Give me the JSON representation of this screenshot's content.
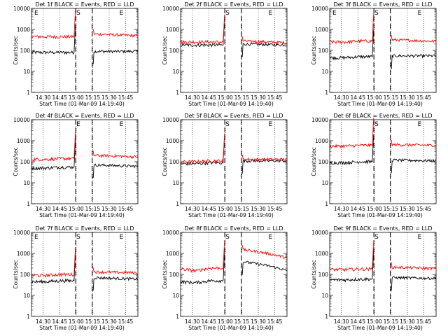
{
  "chart_data": [
    {
      "type": "line",
      "title": "Det 1f BLACK = Events, RED = LLD",
      "ylabel": "Counts/sec",
      "xlabel": "Start Time (01-Mar-09 14:19:40)",
      "x_ticks": [
        "14:30",
        "14:45",
        "15:00",
        "15:15",
        "15:30",
        "15:45"
      ],
      "y_ticks": [
        "1",
        "10",
        "100",
        "1000",
        "10000"
      ],
      "yscale": "log",
      "ylim": [
        1,
        10000
      ],
      "markers": [
        "E",
        "S",
        "E"
      ],
      "series": [
        {
          "color": "#000000",
          "levels": [
            80,
            80,
            80,
            90,
            100,
            90
          ]
        },
        {
          "color": "#ff0000",
          "levels": [
            450,
            450,
            450,
            600,
            550,
            500
          ]
        }
      ]
    },
    {
      "type": "line",
      "title": "Det 2f BLACK = Events, RED = LLD",
      "ylabel": "Counts/sec",
      "xlabel": "Start Time (01-Mar-09 14:19:40)",
      "x_ticks": [
        "14:30",
        "14:45",
        "15:00",
        "15:15",
        "15:30",
        "15:45"
      ],
      "y_ticks": [
        "1",
        "10",
        "100",
        "1000",
        "10000"
      ],
      "yscale": "log",
      "ylim": [
        1,
        10000
      ],
      "markers": [
        "S",
        "E"
      ],
      "series": [
        {
          "color": "#000000",
          "levels": [
            180,
            180,
            180,
            200,
            200,
            180
          ]
        },
        {
          "color": "#ff0000",
          "levels": [
            250,
            250,
            250,
            280,
            250,
            230
          ]
        }
      ]
    },
    {
      "type": "line",
      "title": "Det 3f BLACK = Events, RED = LLD",
      "ylabel": "Counts/sec",
      "xlabel": "Start Time (01-Mar-09 14:19:40)",
      "x_ticks": [
        "14:30",
        "14:45",
        "15:00",
        "15:15",
        "15:30",
        "15:45"
      ],
      "y_ticks": [
        "1",
        "10",
        "100",
        "1000",
        "10000"
      ],
      "yscale": "log",
      "ylim": [
        1,
        10000
      ],
      "markers": [
        "E",
        "S",
        "E"
      ],
      "series": [
        {
          "color": "#000000",
          "levels": [
            45,
            45,
            50,
            55,
            55,
            55
          ]
        },
        {
          "color": "#ff0000",
          "levels": [
            250,
            250,
            280,
            320,
            280,
            270
          ]
        }
      ]
    },
    {
      "type": "line",
      "title": "Det 4f BLACK = Events, RED = LLD",
      "ylabel": "Counts/sec",
      "xlabel": "Start Time (01-Mar-09 14:19:40)",
      "x_ticks": [
        "14:30",
        "14:45",
        "15:00",
        "15:15",
        "15:30",
        "15:45"
      ],
      "y_ticks": [
        "1",
        "10",
        "100",
        "1000",
        "10000"
      ],
      "yscale": "log",
      "ylim": [
        1,
        10000
      ],
      "markers": [
        "E",
        "E"
      ],
      "series": [
        {
          "color": "#000000",
          "levels": [
            50,
            50,
            55,
            70,
            65,
            60
          ]
        },
        {
          "color": "#ff0000",
          "levels": [
            130,
            130,
            140,
            200,
            180,
            170
          ]
        }
      ]
    },
    {
      "type": "line",
      "title": "Det 5f BLACK = Events, RED = LLD",
      "ylabel": "Counts/sec",
      "xlabel": "Start Time (01-Mar-09 14:19:40)",
      "x_ticks": [
        "14:30",
        "14:45",
        "15:00",
        "15:15",
        "15:30",
        "15:45"
      ],
      "y_ticks": [
        "1",
        "10",
        "100",
        "1000",
        "10000"
      ],
      "yscale": "log",
      "ylim": [
        1,
        10000
      ],
      "markers": [
        "S",
        "E"
      ],
      "series": [
        {
          "color": "#000000",
          "levels": [
            80,
            80,
            90,
            110,
            120,
            110
          ]
        },
        {
          "color": "#ff0000",
          "levels": [
            100,
            100,
            110,
            130,
            140,
            130
          ]
        }
      ]
    },
    {
      "type": "line",
      "title": "Det 6f BLACK = Events, RED = LLD",
      "ylabel": "Counts/sec",
      "xlabel": "Start Time (01-Mar-09 14:19:40)",
      "x_ticks": [
        "14:30",
        "14:45",
        "15:00",
        "15:15",
        "15:30",
        "15:45"
      ],
      "y_ticks": [
        "1",
        "10",
        "100",
        "1000",
        "10000"
      ],
      "yscale": "log",
      "ylim": [
        1,
        10000
      ],
      "markers": [
        "S",
        "E"
      ],
      "series": [
        {
          "color": "#000000",
          "levels": [
            90,
            90,
            100,
            120,
            120,
            110
          ]
        },
        {
          "color": "#ff0000",
          "levels": [
            550,
            550,
            600,
            650,
            620,
            600
          ]
        }
      ]
    },
    {
      "type": "line",
      "title": "Det 7f BLACK = Events, RED = LLD",
      "ylabel": "Counts/sec",
      "xlabel": "Start Time (01-Mar-09 14:19:40)",
      "x_ticks": [
        "14:30",
        "14:45",
        "15:00",
        "15:15",
        "15:30",
        "15:45"
      ],
      "y_ticks": [
        "1",
        "10",
        "100",
        "1000",
        "10000"
      ],
      "yscale": "log",
      "ylim": [
        1,
        10000
      ],
      "markers": [
        "E",
        "S",
        "E"
      ],
      "series": [
        {
          "color": "#000000",
          "levels": [
            45,
            45,
            50,
            70,
            70,
            60
          ]
        },
        {
          "color": "#ff0000",
          "levels": [
            90,
            90,
            100,
            130,
            140,
            120
          ]
        }
      ]
    },
    {
      "type": "line",
      "title": "Det 8f BLACK = Events, RED = LLD",
      "ylabel": "Counts/sec",
      "xlabel": "Start Time (01-Mar-09 14:19:40)",
      "x_ticks": [
        "14:30",
        "14:45",
        "15:00",
        "15:15",
        "15:30",
        "15:45"
      ],
      "y_ticks": [
        "1",
        "10",
        "100",
        "1000",
        "10000"
      ],
      "yscale": "log",
      "ylim": [
        1,
        10000
      ],
      "markers": [
        "S",
        "E"
      ],
      "series": [
        {
          "color": "#000000",
          "levels": [
            45,
            40,
            50,
            400,
            200,
            150
          ]
        },
        {
          "color": "#ff0000",
          "levels": [
            180,
            150,
            200,
            1500,
            800,
            600
          ]
        }
      ]
    },
    {
      "type": "line",
      "title": "Det 9f BLACK = Events, RED = LLD",
      "ylabel": "Counts/sec",
      "xlabel": "Start Time (01-Mar-09 14:19:40)",
      "x_ticks": [
        "14:30",
        "14:45",
        "15:00",
        "15:15",
        "15:30",
        "15:45"
      ],
      "y_ticks": [
        "1",
        "10",
        "100",
        "1000",
        "10000"
      ],
      "yscale": "log",
      "ylim": [
        1,
        10000
      ],
      "markers": [
        "S",
        "E"
      ],
      "series": [
        {
          "color": "#000000",
          "levels": [
            55,
            55,
            60,
            70,
            70,
            65
          ]
        },
        {
          "color": "#ff0000",
          "levels": [
            170,
            170,
            180,
            220,
            200,
            190
          ]
        }
      ]
    }
  ]
}
